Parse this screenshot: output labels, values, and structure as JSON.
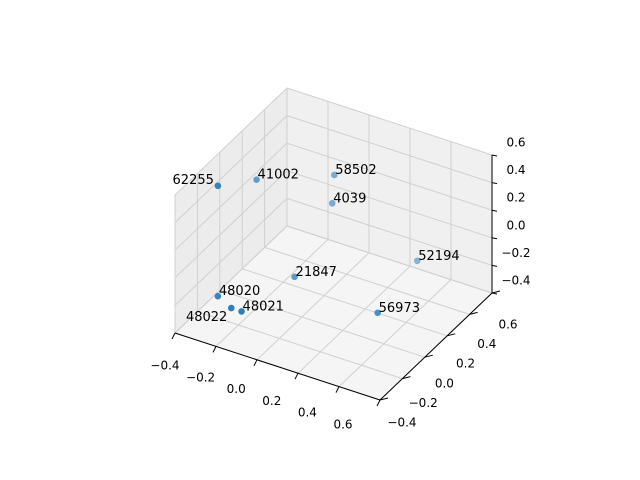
{
  "chart_data": {
    "type": "scatter",
    "projection": "3d",
    "title": "",
    "xlabel": "",
    "ylabel": "",
    "zlabel": "",
    "xlim": [
      -0.4,
      0.6
    ],
    "ylim": [
      -0.4,
      0.6
    ],
    "zlim": [
      -0.4,
      0.6
    ],
    "xticks": [
      "−0.4",
      "−0.2",
      "0.0",
      "0.2",
      "0.4",
      "0.6"
    ],
    "yticks": [
      "−0.4",
      "−0.2",
      "0.0",
      "0.2",
      "0.4",
      "0.6"
    ],
    "zticks": [
      "−0.4",
      "−0.2",
      "0.0",
      "0.2",
      "0.4",
      "0.6"
    ],
    "grid": true,
    "marker_color": "#1f77b4",
    "points": [
      {
        "label": "62255",
        "x": -0.3,
        "y": -0.2,
        "z": 0.56
      },
      {
        "label": "41002",
        "x": -0.33,
        "y": 0.2,
        "z": 0.28
      },
      {
        "label": "58502",
        "x": -0.06,
        "y": 0.4,
        "z": 0.29
      },
      {
        "label": "4039",
        "x": -0.07,
        "y": 0.4,
        "z": 0.08
      },
      {
        "label": "52194",
        "x": 0.29,
        "y": 0.5,
        "z": -0.24
      },
      {
        "label": "21847",
        "x": -0.09,
        "y": 0.1,
        "z": -0.23
      },
      {
        "label": "48020",
        "x": -0.3,
        "y": -0.2,
        "z": -0.24
      },
      {
        "label": "48022",
        "x": -0.18,
        "y": -0.3,
        "z": -0.19
      },
      {
        "label": "48021",
        "x": -0.13,
        "y": -0.3,
        "z": -0.19
      },
      {
        "label": "56973",
        "x": 0.37,
        "y": 0.0,
        "z": -0.19
      }
    ]
  }
}
